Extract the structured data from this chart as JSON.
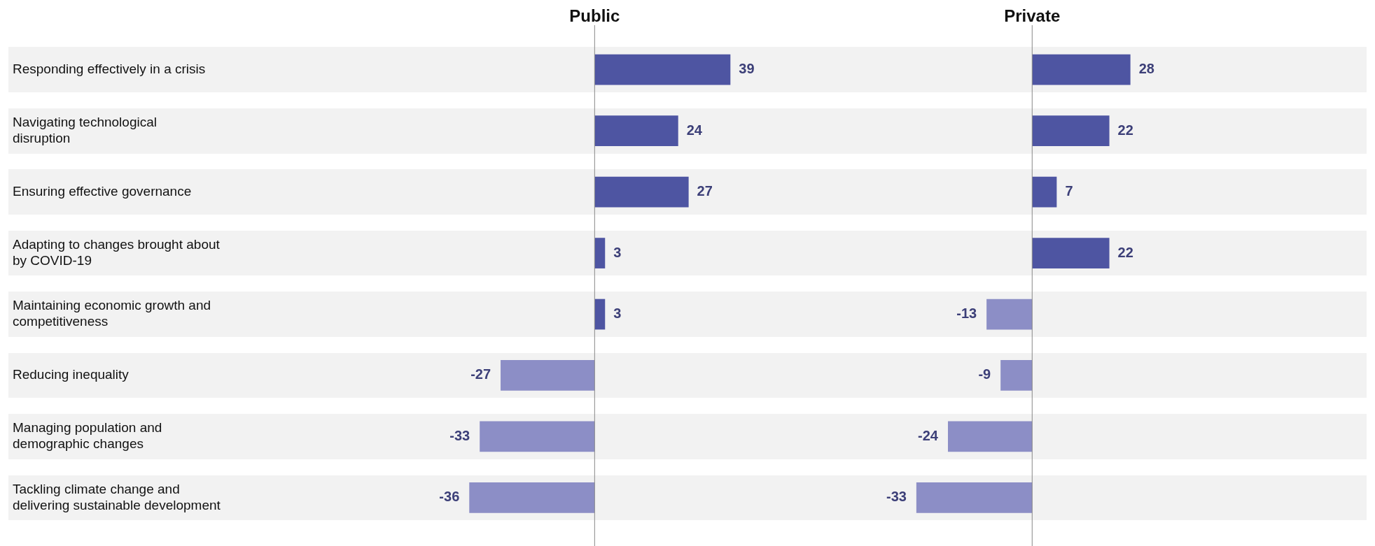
{
  "chart_data": [
    {
      "type": "bar",
      "orientation": "horizontal",
      "title": "Public",
      "categories": [
        "Responding effectively in a crisis",
        "Navigating technological disruption",
        "Ensuring effective governance",
        "Adapting to changes brought about by COVID-19",
        "Maintaining economic growth and competitiveness",
        "Reducing inequality",
        "Managing population and demographic changes",
        "Tackling climate change and delivering sustainable development"
      ],
      "values": [
        39,
        24,
        27,
        3,
        3,
        -27,
        -33,
        -36
      ],
      "colors": [
        "#4e55a2",
        "#4e55a2",
        "#4e55a2",
        "#4e55a2",
        "#4e55a2",
        "#8c8ec6",
        "#8c8ec6",
        "#8c8ec6"
      ],
      "data_labels": true
    },
    {
      "type": "bar",
      "orientation": "horizontal",
      "title": "Private",
      "categories": [
        null,
        null,
        null,
        null,
        null,
        null,
        null,
        null
      ],
      "values": [
        28,
        22,
        7,
        22,
        -13,
        -9,
        -24,
        -33
      ],
      "colors": [
        "#4e55a2",
        "#4e55a2",
        "#4e55a2",
        "#4e55a2",
        "#8c8ec6",
        "#8c8ec6",
        "#8c8ec6",
        "#8c8ec6"
      ],
      "data_labels": true
    }
  ]
}
